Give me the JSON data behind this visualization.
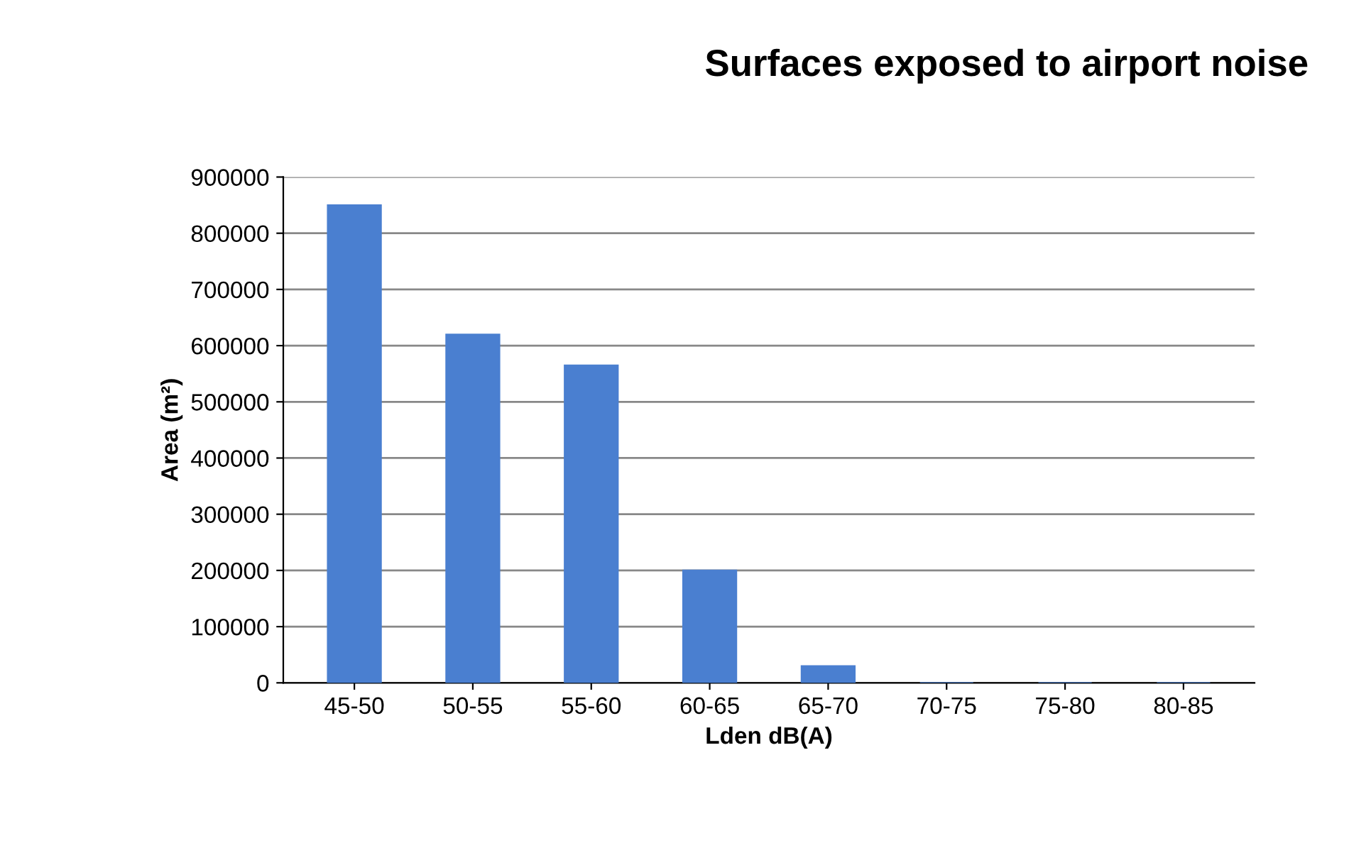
{
  "chart_data": {
    "type": "bar",
    "title": "Surfaces exposed to airport noise",
    "xlabel": "Lden dB(A)",
    "ylabel": "Area (m²)",
    "categories": [
      "45-50",
      "50-55",
      "55-60",
      "60-65",
      "65-70",
      "70-75",
      "75-80",
      "80-85"
    ],
    "values": [
      850000,
      620000,
      565000,
      200000,
      30000,
      0,
      0,
      0
    ],
    "color": "#4a7fd0",
    "ylim": [
      0,
      900000
    ],
    "yticks": [
      0,
      100000,
      200000,
      300000,
      400000,
      500000,
      600000,
      700000,
      800000,
      900000
    ],
    "grid": "y",
    "legend": false
  }
}
